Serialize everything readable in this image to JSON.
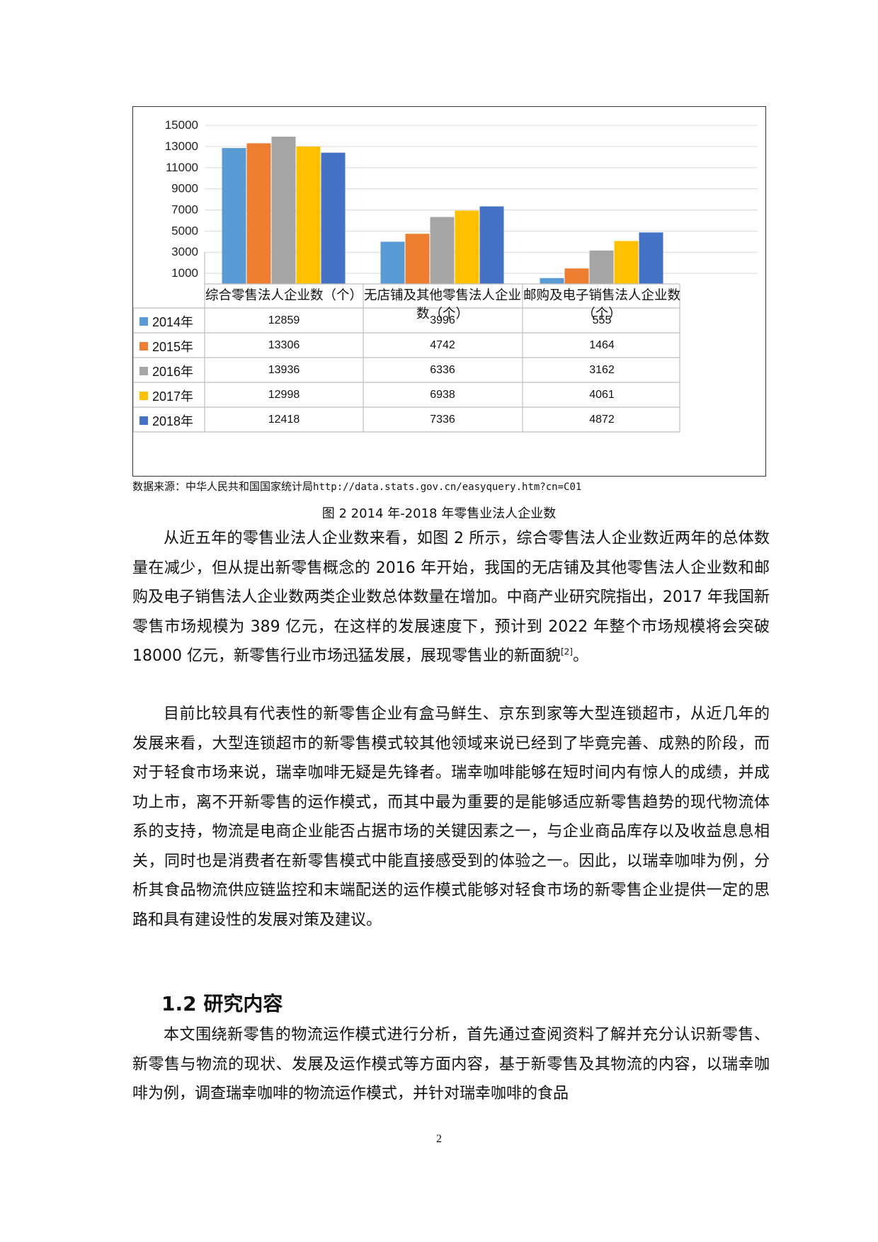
{
  "chart_data": {
    "type": "bar",
    "categories": [
      "综合零售法人企业数（个）",
      "无店铺及其他零售法人企业数（个）",
      "邮购及电子销售法人企业数（个）"
    ],
    "category_label_lines": [
      [
        "综合零售法人企业数（个）"
      ],
      [
        "无店铺及其他零售法人企业",
        "数（个）"
      ],
      [
        "邮购及电子销售法人企业数",
        "（个）"
      ]
    ],
    "series": [
      {
        "name": "2014年",
        "color": "#5B9BD5",
        "values": [
          12859,
          3996,
          555
        ]
      },
      {
        "name": "2015年",
        "color": "#ED7D31",
        "values": [
          13306,
          4742,
          1464
        ]
      },
      {
        "name": "2016年",
        "color": "#A5A5A5",
        "values": [
          13936,
          6336,
          3162
        ]
      },
      {
        "name": "2017年",
        "color": "#FFC000",
        "values": [
          12998,
          6938,
          4061
        ]
      },
      {
        "name": "2018年",
        "color": "#4472C4",
        "values": [
          12418,
          7336,
          4872
        ]
      }
    ],
    "y_ticks": [
      1000,
      3000,
      5000,
      7000,
      9000,
      11000,
      13000,
      15000
    ],
    "ylim": [
      0,
      15000
    ],
    "grid": true,
    "legend": "data-table"
  },
  "source": {
    "label": "数据来源：中华人民共和国国家统计局",
    "url": "http://data.stats.gov.cn/easyquery.htm?cn=C01"
  },
  "caption": "图 2 2014 年-2018 年零售业法人企业数",
  "paragraphs": {
    "p1": "从近五年的零售业法人企业数来看，如图 2 所示，综合零售法人企业数近两年的总体数量在减少，但从提出新零售概念的 2016 年开始，我国的无店铺及其他零售法人企业数和邮购及电子销售法人企业数两类企业数总体数量在增加。中商产业研究院指出，2017 年我国新零售市场规模为 389 亿元，在这样的发展速度下，预计到 2022 年整个市场规模将会突破 18000 亿元，新零售行业市场迅猛发展，展现零售业的新面貌",
    "p1_ref": "[2]",
    "p1_end": "。",
    "p2": "目前比较具有代表性的新零售企业有盒马鲜生、京东到家等大型连锁超市，从近几年的发展来看，大型连锁超市的新零售模式较其他领域来说已经到了毕竟完善、成熟的阶段，而对于轻食市场来说，瑞幸咖啡无疑是先锋者。瑞幸咖啡能够在短时间内有惊人的成绩，并成功上市，离不开新零售的运作模式，而其中最为重要的是能够适应新零售趋势的现代物流体系的支持，物流是电商企业能否占据市场的关键因素之一，与企业商品库存以及收益息息相关，同时也是消费者在新零售模式中能直接感受到的体验之一。因此，以瑞幸咖啡为例，分析其食品物流供应链监控和末端配送的运作模式能够对轻食市场的新零售企业提供一定的思路和具有建设性的发展对策及建议。",
    "p3": "本文围绕新零售的物流运作模式进行分析，首先通过查阅资料了解并充分认识新零售、新零售与物流的现状、发展及运作模式等方面内容，基于新零售及其物流的内容，以瑞幸咖啡为例，调查瑞幸咖啡的物流运作模式，并针对瑞幸咖啡的食品"
  },
  "heading": "1.2 研究内容",
  "page_number": "2"
}
